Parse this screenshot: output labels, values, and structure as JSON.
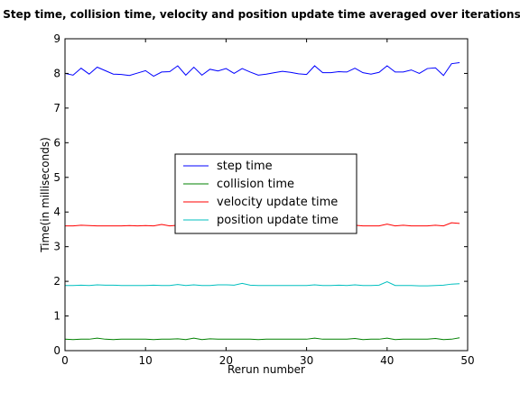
{
  "chart_data": {
    "type": "line",
    "title": "Step time, collision time, velocity and position update time averaged over iterations",
    "xlabel": "Rerun number",
    "ylabel": "Time(in milliseconds)",
    "xlim": [
      0,
      50
    ],
    "ylim": [
      0,
      9
    ],
    "x_ticks": [
      "0",
      "10",
      "20",
      "30",
      "40",
      "50"
    ],
    "y_ticks": [
      "0",
      "1",
      "2",
      "3",
      "4",
      "5",
      "6",
      "7",
      "8",
      "9"
    ],
    "grid": false,
    "legend_position": "center",
    "x": [
      0,
      1,
      2,
      3,
      4,
      5,
      6,
      7,
      8,
      9,
      10,
      11,
      12,
      13,
      14,
      15,
      16,
      17,
      18,
      19,
      20,
      21,
      22,
      23,
      24,
      25,
      26,
      27,
      28,
      29,
      30,
      31,
      32,
      33,
      34,
      35,
      36,
      37,
      38,
      39,
      40,
      41,
      42,
      43,
      44,
      45,
      46,
      47,
      48,
      49
    ],
    "series": [
      {
        "name": "step time",
        "color": "#0000ff",
        "values": [
          8.0,
          7.95,
          8.15,
          7.98,
          8.18,
          8.08,
          7.98,
          7.97,
          7.94,
          8.01,
          8.08,
          7.92,
          8.04,
          8.05,
          8.22,
          7.95,
          8.18,
          7.95,
          8.12,
          8.07,
          8.14,
          8.0,
          8.14,
          8.04,
          7.95,
          7.98,
          8.02,
          8.06,
          8.03,
          7.99,
          7.97,
          8.22,
          8.02,
          8.02,
          8.05,
          8.04,
          8.15,
          8.02,
          7.98,
          8.03,
          8.22,
          8.04,
          8.04,
          8.1,
          8.0,
          8.14,
          8.16,
          7.94,
          8.28,
          8.31
        ]
      },
      {
        "name": "collision time",
        "color": "#008000",
        "values": [
          0.33,
          0.32,
          0.33,
          0.33,
          0.36,
          0.33,
          0.32,
          0.33,
          0.33,
          0.33,
          0.33,
          0.32,
          0.33,
          0.33,
          0.34,
          0.32,
          0.36,
          0.32,
          0.34,
          0.33,
          0.33,
          0.33,
          0.33,
          0.33,
          0.32,
          0.33,
          0.33,
          0.33,
          0.33,
          0.33,
          0.33,
          0.36,
          0.33,
          0.33,
          0.33,
          0.33,
          0.35,
          0.32,
          0.33,
          0.33,
          0.36,
          0.32,
          0.33,
          0.33,
          0.33,
          0.33,
          0.35,
          0.32,
          0.33,
          0.37
        ]
      },
      {
        "name": "velocity update time",
        "color": "#ff0000",
        "values": [
          3.6,
          3.6,
          3.62,
          3.61,
          3.6,
          3.6,
          3.6,
          3.6,
          3.61,
          3.6,
          3.61,
          3.6,
          3.64,
          3.6,
          3.62,
          3.6,
          3.64,
          3.6,
          3.62,
          3.6,
          3.61,
          3.6,
          3.62,
          3.6,
          3.6,
          3.6,
          3.61,
          3.6,
          3.6,
          3.6,
          3.6,
          3.63,
          3.6,
          3.6,
          3.61,
          3.6,
          3.62,
          3.6,
          3.6,
          3.6,
          3.65,
          3.6,
          3.62,
          3.6,
          3.6,
          3.6,
          3.62,
          3.6,
          3.69,
          3.67
        ]
      },
      {
        "name": "position update time",
        "color": "#00bfbf",
        "values": [
          1.88,
          1.88,
          1.89,
          1.88,
          1.9,
          1.89,
          1.89,
          1.88,
          1.88,
          1.88,
          1.88,
          1.89,
          1.88,
          1.88,
          1.91,
          1.88,
          1.9,
          1.88,
          1.88,
          1.9,
          1.9,
          1.89,
          1.94,
          1.89,
          1.88,
          1.88,
          1.88,
          1.88,
          1.88,
          1.88,
          1.88,
          1.9,
          1.88,
          1.88,
          1.89,
          1.88,
          1.9,
          1.88,
          1.88,
          1.89,
          1.99,
          1.88,
          1.88,
          1.88,
          1.87,
          1.87,
          1.88,
          1.89,
          1.92,
          1.93
        ]
      }
    ]
  }
}
